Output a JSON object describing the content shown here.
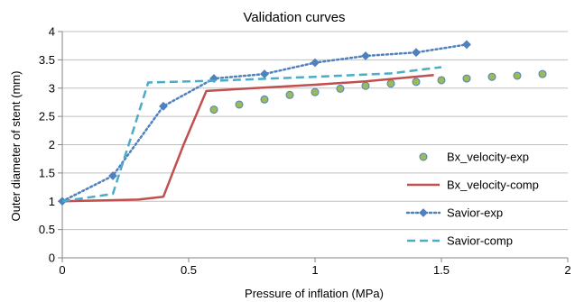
{
  "chart_data": {
    "type": "line",
    "title": "Validation curves",
    "xlabel": "Pressure of inflation (MPa)",
    "ylabel": "Outer diameter of stent (mm)",
    "xlim": [
      0,
      2
    ],
    "ylim": [
      0,
      4
    ],
    "x_ticks": [
      "0",
      "0.5",
      "1",
      "1.5",
      "2"
    ],
    "y_ticks": [
      "0",
      "0.5",
      "1",
      "1.5",
      "2",
      "2.5",
      "3",
      "3.5",
      "4"
    ],
    "grid": "horizontal",
    "legend_position": "right",
    "series": [
      {
        "name": "Bx_velocity-exp",
        "style": "markers",
        "color": "#9BBB59",
        "marker_edge": "#4F81BD",
        "points": [
          [
            0.6,
            2.62
          ],
          [
            0.7,
            2.71
          ],
          [
            0.8,
            2.8
          ],
          [
            0.9,
            2.88
          ],
          [
            1.0,
            2.93
          ],
          [
            1.1,
            2.99
          ],
          [
            1.2,
            3.04
          ],
          [
            1.3,
            3.08
          ],
          [
            1.4,
            3.11
          ],
          [
            1.5,
            3.14
          ],
          [
            1.6,
            3.17
          ],
          [
            1.7,
            3.2
          ],
          [
            1.8,
            3.22
          ],
          [
            1.9,
            3.25
          ]
        ]
      },
      {
        "name": "Bx_velocity-comp",
        "style": "solid",
        "color": "#C0504D",
        "points": [
          [
            0,
            1.0
          ],
          [
            0.3,
            1.03
          ],
          [
            0.4,
            1.08
          ],
          [
            0.48,
            2.0
          ],
          [
            0.57,
            2.95
          ],
          [
            0.8,
            3.01
          ],
          [
            1.0,
            3.06
          ],
          [
            1.2,
            3.12
          ],
          [
            1.47,
            3.23
          ]
        ]
      },
      {
        "name": "Savior-exp",
        "style": "dotted-diamond",
        "color": "#4F81BD",
        "points": [
          [
            0,
            1.0
          ],
          [
            0.2,
            1.45
          ],
          [
            0.4,
            2.68
          ],
          [
            0.6,
            3.17
          ],
          [
            0.8,
            3.25
          ],
          [
            1.0,
            3.45
          ],
          [
            1.2,
            3.57
          ],
          [
            1.4,
            3.63
          ],
          [
            1.6,
            3.77
          ]
        ]
      },
      {
        "name": "Savior-comp",
        "style": "dashed",
        "color": "#4BACC6",
        "points": [
          [
            0,
            1.0
          ],
          [
            0.2,
            1.13
          ],
          [
            0.27,
            2.1
          ],
          [
            0.34,
            3.1
          ],
          [
            0.6,
            3.13
          ],
          [
            1.0,
            3.2
          ],
          [
            1.3,
            3.26
          ],
          [
            1.5,
            3.37
          ]
        ]
      }
    ]
  }
}
